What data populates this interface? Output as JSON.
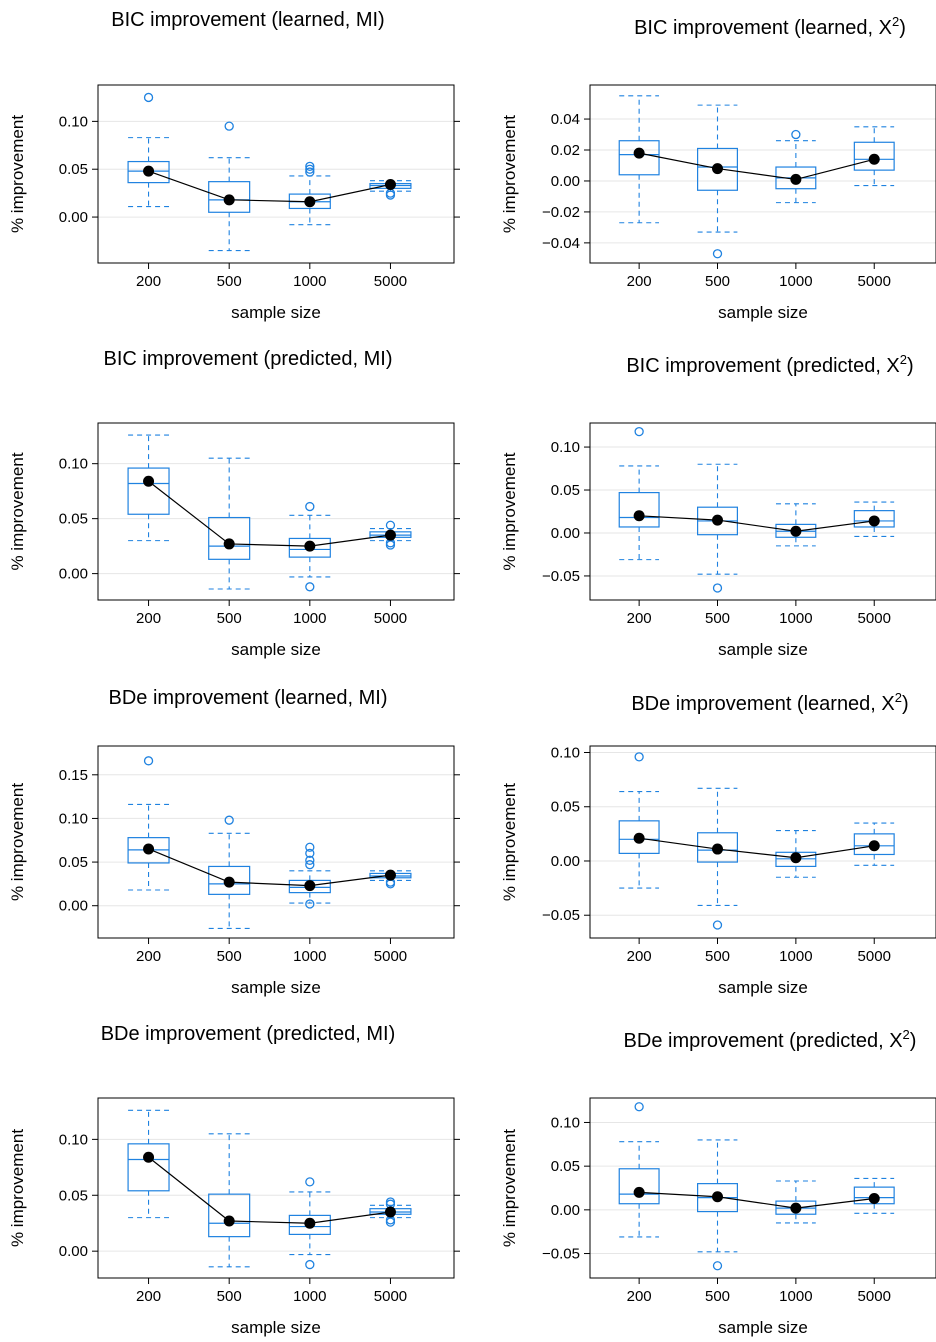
{
  "colors": {
    "box": "#1f82e0",
    "mean": "#000000",
    "grid": "#e6e6e6"
  },
  "chart_data": [
    {
      "type": "boxplot",
      "title": "BIC improvement (learned, MI)",
      "title_main": "BIC improvement (learned, MI)",
      "title_sup": "",
      "title_end": "",
      "xlabel": "sample size",
      "ylabel": "% improvement",
      "categories": [
        "200",
        "500",
        "1000",
        "5000"
      ],
      "ylim": [
        -0.048,
        0.138
      ],
      "yticks": [
        0.0,
        0.05,
        0.1
      ],
      "ytick_labels": [
        "0.00",
        "0.05",
        "0.10"
      ],
      "boxes": [
        {
          "lw": 0.011,
          "q1": 0.036,
          "med": 0.048,
          "q3": 0.058,
          "uw": 0.083,
          "outliers": [
            0.125
          ]
        },
        {
          "lw": -0.035,
          "q1": 0.005,
          "med": 0.018,
          "q3": 0.037,
          "uw": 0.062,
          "outliers": [
            0.095
          ]
        },
        {
          "lw": -0.008,
          "q1": 0.009,
          "med": 0.016,
          "q3": 0.024,
          "uw": 0.043,
          "outliers": [
            0.053,
            0.05,
            0.047
          ]
        },
        {
          "lw": 0.027,
          "q1": 0.03,
          "med": 0.033,
          "q3": 0.035,
          "uw": 0.038,
          "outliers": [
            0.025,
            0.023
          ]
        }
      ],
      "means": [
        0.048,
        0.018,
        0.016,
        0.034
      ]
    },
    {
      "type": "boxplot",
      "title": "BIC improvement (learned, X2)",
      "title_main": "BIC improvement (learned, X",
      "title_sup": "2",
      "title_end": ")",
      "xlabel": "sample size",
      "ylabel": "% improvement",
      "categories": [
        "200",
        "500",
        "1000",
        "5000"
      ],
      "ylim": [
        -0.053,
        0.062
      ],
      "yticks": [
        -0.04,
        -0.02,
        0.0,
        0.02,
        0.04
      ],
      "ytick_labels": [
        "−0.04",
        "−0.02",
        "0.00",
        "0.02",
        "0.04"
      ],
      "boxes": [
        {
          "lw": -0.027,
          "q1": 0.004,
          "med": 0.017,
          "q3": 0.026,
          "uw": 0.055,
          "outliers": []
        },
        {
          "lw": -0.033,
          "q1": -0.006,
          "med": 0.009,
          "q3": 0.021,
          "uw": 0.049,
          "outliers": [
            -0.047
          ]
        },
        {
          "lw": -0.014,
          "q1": -0.005,
          "med": 0.002,
          "q3": 0.009,
          "uw": 0.026,
          "outliers": [
            0.03
          ]
        },
        {
          "lw": -0.003,
          "q1": 0.007,
          "med": 0.014,
          "q3": 0.025,
          "uw": 0.035,
          "outliers": []
        }
      ],
      "means": [
        0.018,
        0.008,
        0.001,
        0.014
      ]
    },
    {
      "type": "boxplot",
      "title": "BIC improvement (predicted, MI)",
      "title_main": "BIC improvement (predicted, MI)",
      "title_sup": "",
      "title_end": "",
      "xlabel": "sample size",
      "ylabel": "% improvement",
      "categories": [
        "200",
        "500",
        "1000",
        "5000"
      ],
      "ylim": [
        -0.024,
        0.137
      ],
      "yticks": [
        0.0,
        0.05,
        0.1
      ],
      "ytick_labels": [
        "0.00",
        "0.05",
        "0.10"
      ],
      "boxes": [
        {
          "lw": 0.03,
          "q1": 0.054,
          "med": 0.082,
          "q3": 0.096,
          "uw": 0.126,
          "outliers": []
        },
        {
          "lw": -0.014,
          "q1": 0.013,
          "med": 0.025,
          "q3": 0.051,
          "uw": 0.105,
          "outliers": []
        },
        {
          "lw": -0.003,
          "q1": 0.015,
          "med": 0.022,
          "q3": 0.032,
          "uw": 0.053,
          "outliers": [
            0.061,
            -0.012
          ]
        },
        {
          "lw": 0.03,
          "q1": 0.033,
          "med": 0.035,
          "q3": 0.038,
          "uw": 0.041,
          "outliers": [
            0.044,
            0.026,
            0.028
          ]
        }
      ],
      "means": [
        0.084,
        0.027,
        0.025,
        0.035
      ]
    },
    {
      "type": "boxplot",
      "title": "BIC improvement (predicted, X2)",
      "title_main": "BIC improvement (predicted, X",
      "title_sup": "2",
      "title_end": ")",
      "xlabel": "sample size",
      "ylabel": "% improvement",
      "categories": [
        "200",
        "500",
        "1000",
        "5000"
      ],
      "ylim": [
        -0.078,
        0.128
      ],
      "yticks": [
        -0.05,
        0.0,
        0.05,
        0.1
      ],
      "ytick_labels": [
        "−0.05",
        "0.00",
        "0.05",
        "0.10"
      ],
      "boxes": [
        {
          "lw": -0.031,
          "q1": 0.007,
          "med": 0.018,
          "q3": 0.047,
          "uw": 0.078,
          "outliers": [
            0.118
          ]
        },
        {
          "lw": -0.048,
          "q1": -0.002,
          "med": 0.014,
          "q3": 0.03,
          "uw": 0.08,
          "outliers": [
            -0.064
          ]
        },
        {
          "lw": -0.015,
          "q1": -0.005,
          "med": 0.002,
          "q3": 0.01,
          "uw": 0.034,
          "outliers": []
        },
        {
          "lw": -0.004,
          "q1": 0.007,
          "med": 0.014,
          "q3": 0.026,
          "uw": 0.036,
          "outliers": []
        }
      ],
      "means": [
        0.02,
        0.015,
        0.002,
        0.014
      ]
    },
    {
      "type": "boxplot",
      "title": "BDe improvement (learned, MI)",
      "title_main": "BDe improvement (learned, MI)",
      "title_sup": "",
      "title_end": "",
      "xlabel": "sample size",
      "ylabel": "% improvement",
      "categories": [
        "200",
        "500",
        "1000",
        "5000"
      ],
      "ylim": [
        -0.037,
        0.183
      ],
      "yticks": [
        0.0,
        0.05,
        0.1,
        0.15
      ],
      "ytick_labels": [
        "0.00",
        "0.05",
        "0.10",
        "0.15"
      ],
      "boxes": [
        {
          "lw": 0.018,
          "q1": 0.049,
          "med": 0.064,
          "q3": 0.078,
          "uw": 0.116,
          "outliers": [
            0.166
          ]
        },
        {
          "lw": -0.026,
          "q1": 0.013,
          "med": 0.025,
          "q3": 0.045,
          "uw": 0.083,
          "outliers": [
            0.098
          ]
        },
        {
          "lw": 0.003,
          "q1": 0.015,
          "med": 0.021,
          "q3": 0.029,
          "uw": 0.04,
          "outliers": [
            0.067,
            0.06,
            0.052,
            0.047,
            0.002
          ]
        },
        {
          "lw": 0.029,
          "q1": 0.032,
          "med": 0.034,
          "q3": 0.037,
          "uw": 0.04,
          "outliers": [
            0.027,
            0.025
          ]
        }
      ],
      "means": [
        0.065,
        0.027,
        0.023,
        0.035
      ]
    },
    {
      "type": "boxplot",
      "title": "BDe improvement (learned, X2)",
      "title_main": "BDe improvement (learned, X",
      "title_sup": "2",
      "title_end": ")",
      "xlabel": "sample size",
      "ylabel": "% improvement",
      "categories": [
        "200",
        "500",
        "1000",
        "5000"
      ],
      "ylim": [
        -0.071,
        0.106
      ],
      "yticks": [
        -0.05,
        0.0,
        0.05,
        0.1
      ],
      "ytick_labels": [
        "−0.05",
        "0.00",
        "0.05",
        "0.10"
      ],
      "boxes": [
        {
          "lw": -0.025,
          "q1": 0.007,
          "med": 0.02,
          "q3": 0.037,
          "uw": 0.064,
          "outliers": [
            0.096
          ]
        },
        {
          "lw": -0.041,
          "q1": -0.001,
          "med": 0.01,
          "q3": 0.026,
          "uw": 0.067,
          "outliers": [
            -0.059
          ]
        },
        {
          "lw": -0.015,
          "q1": -0.005,
          "med": 0.002,
          "q3": 0.008,
          "uw": 0.028,
          "outliers": []
        },
        {
          "lw": -0.004,
          "q1": 0.006,
          "med": 0.014,
          "q3": 0.025,
          "uw": 0.035,
          "outliers": []
        }
      ],
      "means": [
        0.021,
        0.011,
        0.003,
        0.014
      ]
    },
    {
      "type": "boxplot",
      "title": "BDe improvement (predicted, MI)",
      "title_main": "BDe improvement (predicted, MI)",
      "title_sup": "",
      "title_end": "",
      "xlabel": "sample size",
      "ylabel": "% improvement",
      "categories": [
        "200",
        "500",
        "1000",
        "5000"
      ],
      "ylim": [
        -0.024,
        0.137
      ],
      "yticks": [
        0.0,
        0.05,
        0.1
      ],
      "ytick_labels": [
        "0.00",
        "0.05",
        "0.10"
      ],
      "boxes": [
        {
          "lw": 0.03,
          "q1": 0.054,
          "med": 0.082,
          "q3": 0.096,
          "uw": 0.126,
          "outliers": []
        },
        {
          "lw": -0.014,
          "q1": 0.013,
          "med": 0.025,
          "q3": 0.051,
          "uw": 0.105,
          "outliers": []
        },
        {
          "lw": -0.003,
          "q1": 0.015,
          "med": 0.022,
          "q3": 0.032,
          "uw": 0.053,
          "outliers": [
            0.062,
            -0.012
          ]
        },
        {
          "lw": 0.03,
          "q1": 0.033,
          "med": 0.035,
          "q3": 0.038,
          "uw": 0.041,
          "outliers": [
            0.044,
            0.042,
            0.026,
            0.028
          ]
        }
      ],
      "means": [
        0.084,
        0.027,
        0.025,
        0.035
      ]
    },
    {
      "type": "boxplot",
      "title": "BDe improvement (predicted, X2)",
      "title_main": "BDe improvement (predicted, X",
      "title_sup": "2",
      "title_end": ")",
      "xlabel": "sample size",
      "ylabel": "% improvement",
      "categories": [
        "200",
        "500",
        "1000",
        "5000"
      ],
      "ylim": [
        -0.078,
        0.128
      ],
      "yticks": [
        -0.05,
        0.0,
        0.05,
        0.1
      ],
      "ytick_labels": [
        "−0.05",
        "0.00",
        "0.05",
        "0.10"
      ],
      "boxes": [
        {
          "lw": -0.031,
          "q1": 0.007,
          "med": 0.018,
          "q3": 0.047,
          "uw": 0.078,
          "outliers": [
            0.118
          ]
        },
        {
          "lw": -0.048,
          "q1": -0.002,
          "med": 0.014,
          "q3": 0.03,
          "uw": 0.08,
          "outliers": [
            -0.064
          ]
        },
        {
          "lw": -0.015,
          "q1": -0.005,
          "med": 0.002,
          "q3": 0.01,
          "uw": 0.033,
          "outliers": []
        },
        {
          "lw": -0.004,
          "q1": 0.007,
          "med": 0.014,
          "q3": 0.026,
          "uw": 0.036,
          "outliers": []
        }
      ],
      "means": [
        0.02,
        0.015,
        0.002,
        0.013
      ]
    }
  ]
}
